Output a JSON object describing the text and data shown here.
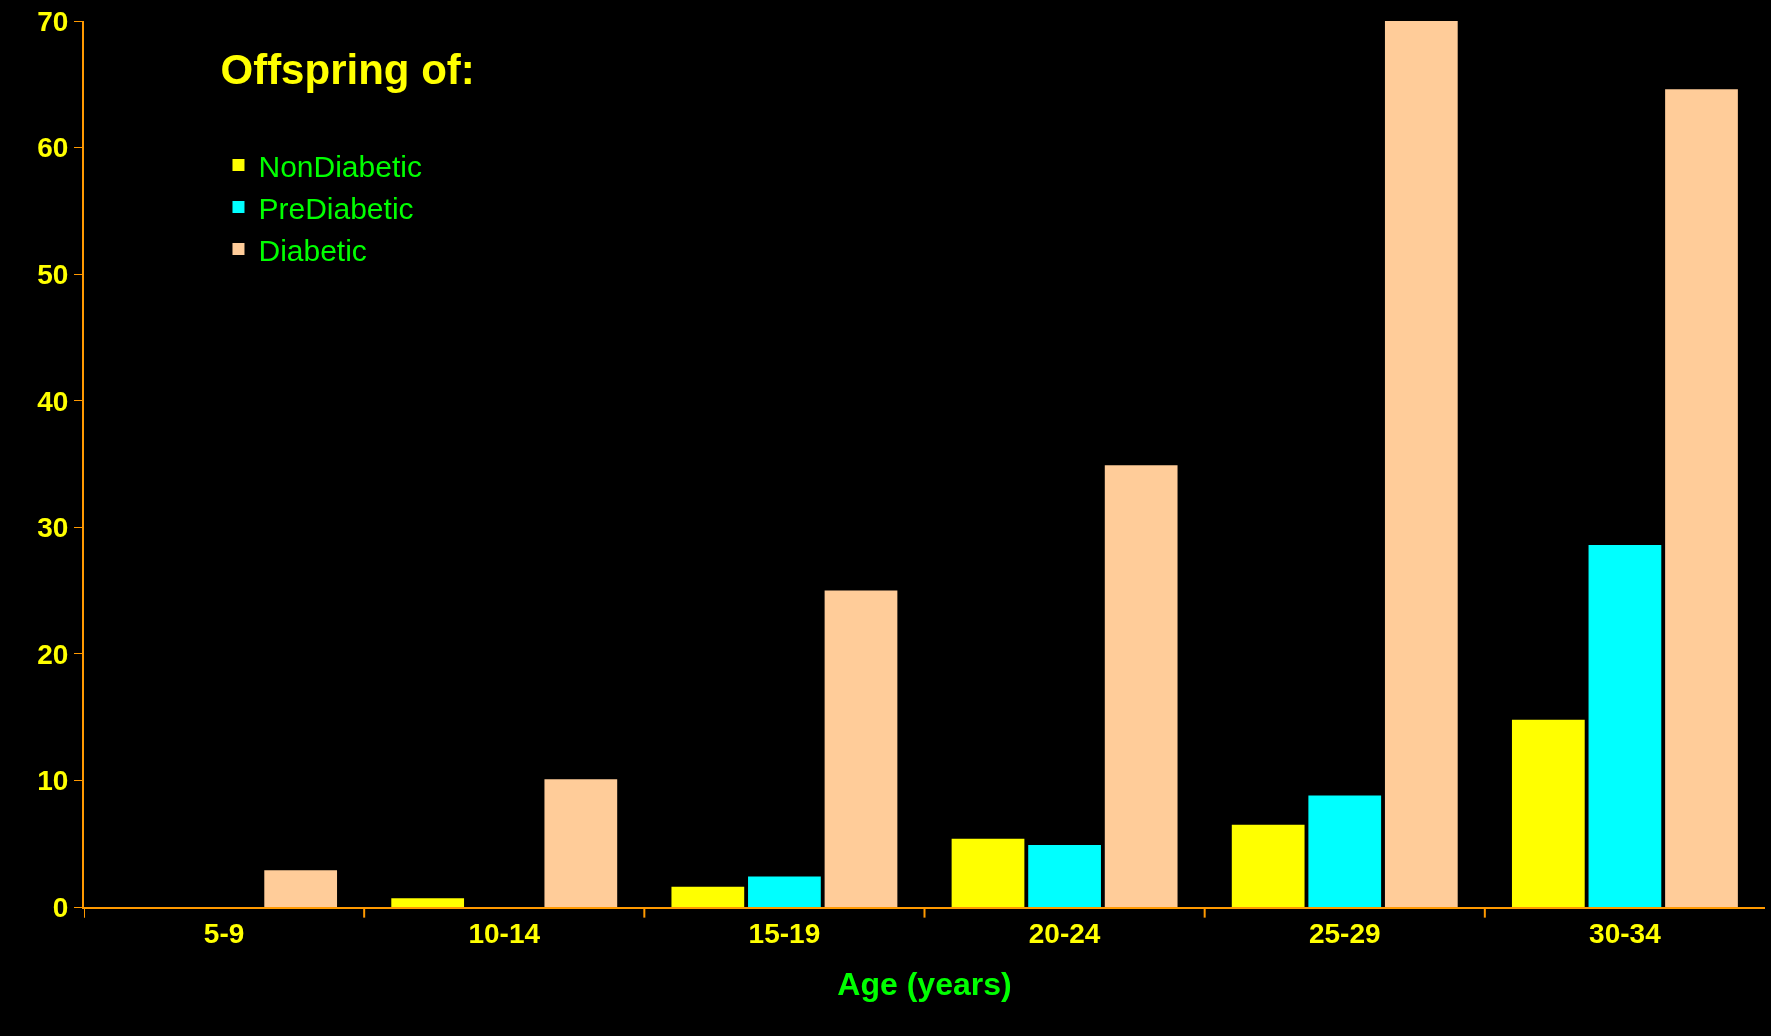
{
  "chart_data": {
    "type": "bar",
    "xlabel": "Age (years)",
    "legend_title": "Offspring of:",
    "categories": [
      "5-9",
      "10-14",
      "15-19",
      "20-24",
      "25-29",
      "30-34"
    ],
    "series": [
      {
        "name": "NonDiabetic",
        "color": "#ffff00",
        "values": [
          0,
          0.7,
          1.6,
          5.4,
          6.5,
          14.8
        ]
      },
      {
        "name": "PreDiabetic",
        "color": "#00ffff",
        "values": [
          0,
          0,
          2.4,
          4.9,
          8.8,
          28.6
        ]
      },
      {
        "name": "Diabetic",
        "color": "#ffcc99",
        "values": [
          2.9,
          10.1,
          25,
          34.9,
          70,
          64.6
        ]
      }
    ],
    "ylim": [
      0,
      70
    ],
    "yticks": [
      0,
      10,
      20,
      30,
      40,
      50,
      60,
      70
    ],
    "grid": false,
    "legend": "top left"
  }
}
